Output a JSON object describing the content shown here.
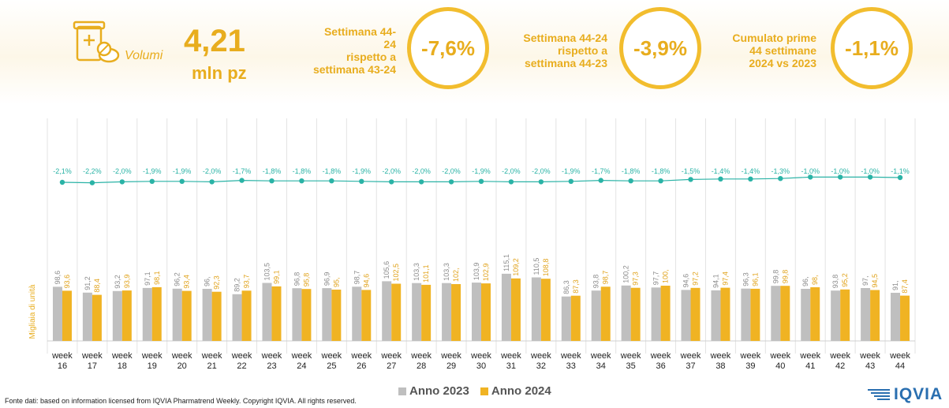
{
  "header": {
    "volumi": {
      "label": "Volumi",
      "value": "4,21",
      "unit": "mln pz"
    },
    "kpis": [
      {
        "lines": [
          "Settimana 44-",
          "24",
          "rispetto a",
          "settimana 43-24"
        ],
        "value": "-7,6%"
      },
      {
        "lines": [
          "Settimana 44-24",
          "rispetto a",
          "settimana 44-23"
        ],
        "value": "-3,9%"
      },
      {
        "lines": [
          "Cumulato prime",
          "44 settimane",
          "2024 vs 2023"
        ],
        "value": "-1,1%"
      }
    ]
  },
  "chart_data": {
    "type": "bar",
    "ylabel": "Migliaia di unità",
    "categories": [
      "week 16",
      "week 17",
      "week 18",
      "week 19",
      "week 20",
      "week 21",
      "week 22",
      "week 23",
      "week 24",
      "week 25",
      "week 26",
      "week 27",
      "week 28",
      "week 29",
      "week 30",
      "week 31",
      "week 32",
      "week 33",
      "week 34",
      "week 35",
      "week 36",
      "week 37",
      "week 38",
      "week 39",
      "week 40",
      "week 41",
      "week 42",
      "week 43",
      "week 44"
    ],
    "series": [
      {
        "name": "Anno 2023",
        "color": "#bfbfbf",
        "values": [
          98.6,
          91.2,
          93.2,
          97.1,
          96.2,
          96,
          89.2,
          103.5,
          96.8,
          96.9,
          98.7,
          105.6,
          103.3,
          103.3,
          103.9,
          115.1,
          110.5,
          86.3,
          93.8,
          100.2,
          97.7,
          94.6,
          94.1,
          96.3,
          99.8,
          96,
          93.8,
          97,
          91
        ],
        "labels": [
          "98,6",
          "91,2",
          "93,2",
          "97,1",
          "96,2",
          "96,",
          "89,2",
          "103,5",
          "96,8",
          "96,9",
          "98,7",
          "105,6",
          "103,3",
          "103,3",
          "103,9",
          "115,1",
          "110,5",
          "86,3",
          "93,8",
          "100,2",
          "97,7",
          "94,6",
          "94,1",
          "96,3",
          "99,8",
          "96,",
          "93,8",
          "97,",
          "91,"
        ]
      },
      {
        "name": "Anno 2024",
        "color": "#f0b323",
        "values": [
          93.6,
          88.4,
          93.9,
          98.1,
          93.4,
          92.3,
          93.7,
          99.1,
          95.8,
          95,
          94.6,
          102.5,
          101.1,
          102,
          102.9,
          109.2,
          108.8,
          87.3,
          98.7,
          97.3,
          100,
          97.2,
          97.4,
          96.1,
          99.8,
          98,
          95.2,
          94.5,
          87.4
        ],
        "labels": [
          "93,6",
          "88,4",
          "93,9",
          "98,1",
          "93,4",
          "92,3",
          "93,7",
          "99,1",
          "95,8",
          "95,",
          "94,6",
          "102,5",
          "101,1",
          "102,",
          "102,9",
          "109,2",
          "108,8",
          "87,3",
          "98,7",
          "97,3",
          "100,",
          "97,2",
          "97,4",
          "96,1",
          "99,8",
          "98,",
          "95,2",
          "94,5",
          "87,4"
        ]
      }
    ],
    "cumulative": {
      "color": "#2ab3a6",
      "values": [
        -2.1,
        -2.2,
        -2.0,
        -1.9,
        -1.9,
        -2.0,
        -1.7,
        -1.8,
        -1.8,
        -1.8,
        -1.9,
        -2.0,
        -2.0,
        -2.0,
        -1.9,
        -2.0,
        -2.0,
        -1.9,
        -1.7,
        -1.8,
        -1.8,
        -1.5,
        -1.4,
        -1.4,
        -1.3,
        -1.0,
        -1.0,
        -1.0,
        -1.1
      ],
      "labels": [
        "-2,1%",
        "-2,2%",
        "-2,0%",
        "-1,9%",
        "-1,9%",
        "-2,0%",
        "-1,7%",
        "-1,8%",
        "-1,8%",
        "-1,8%",
        "-1,9%",
        "-2,0%",
        "-2,0%",
        "-2,0%",
        "-1,9%",
        "-2,0%",
        "-2,0%",
        "-1,9%",
        "-1,7%",
        "-1,8%",
        "-1,8%",
        "-1,5%",
        "-1,4%",
        "-1,4%",
        "-1,3%",
        "-1,0%",
        "-1,0%",
        "-1,0%",
        "-1,1%"
      ]
    },
    "legend": "bottom"
  },
  "footer": {
    "source": "Fonte dati: based on information licensed from IQVIA Pharmatrend Weekly. Copyright IQVIA. All rights reserved."
  },
  "logo": {
    "text": "IQVIA"
  }
}
